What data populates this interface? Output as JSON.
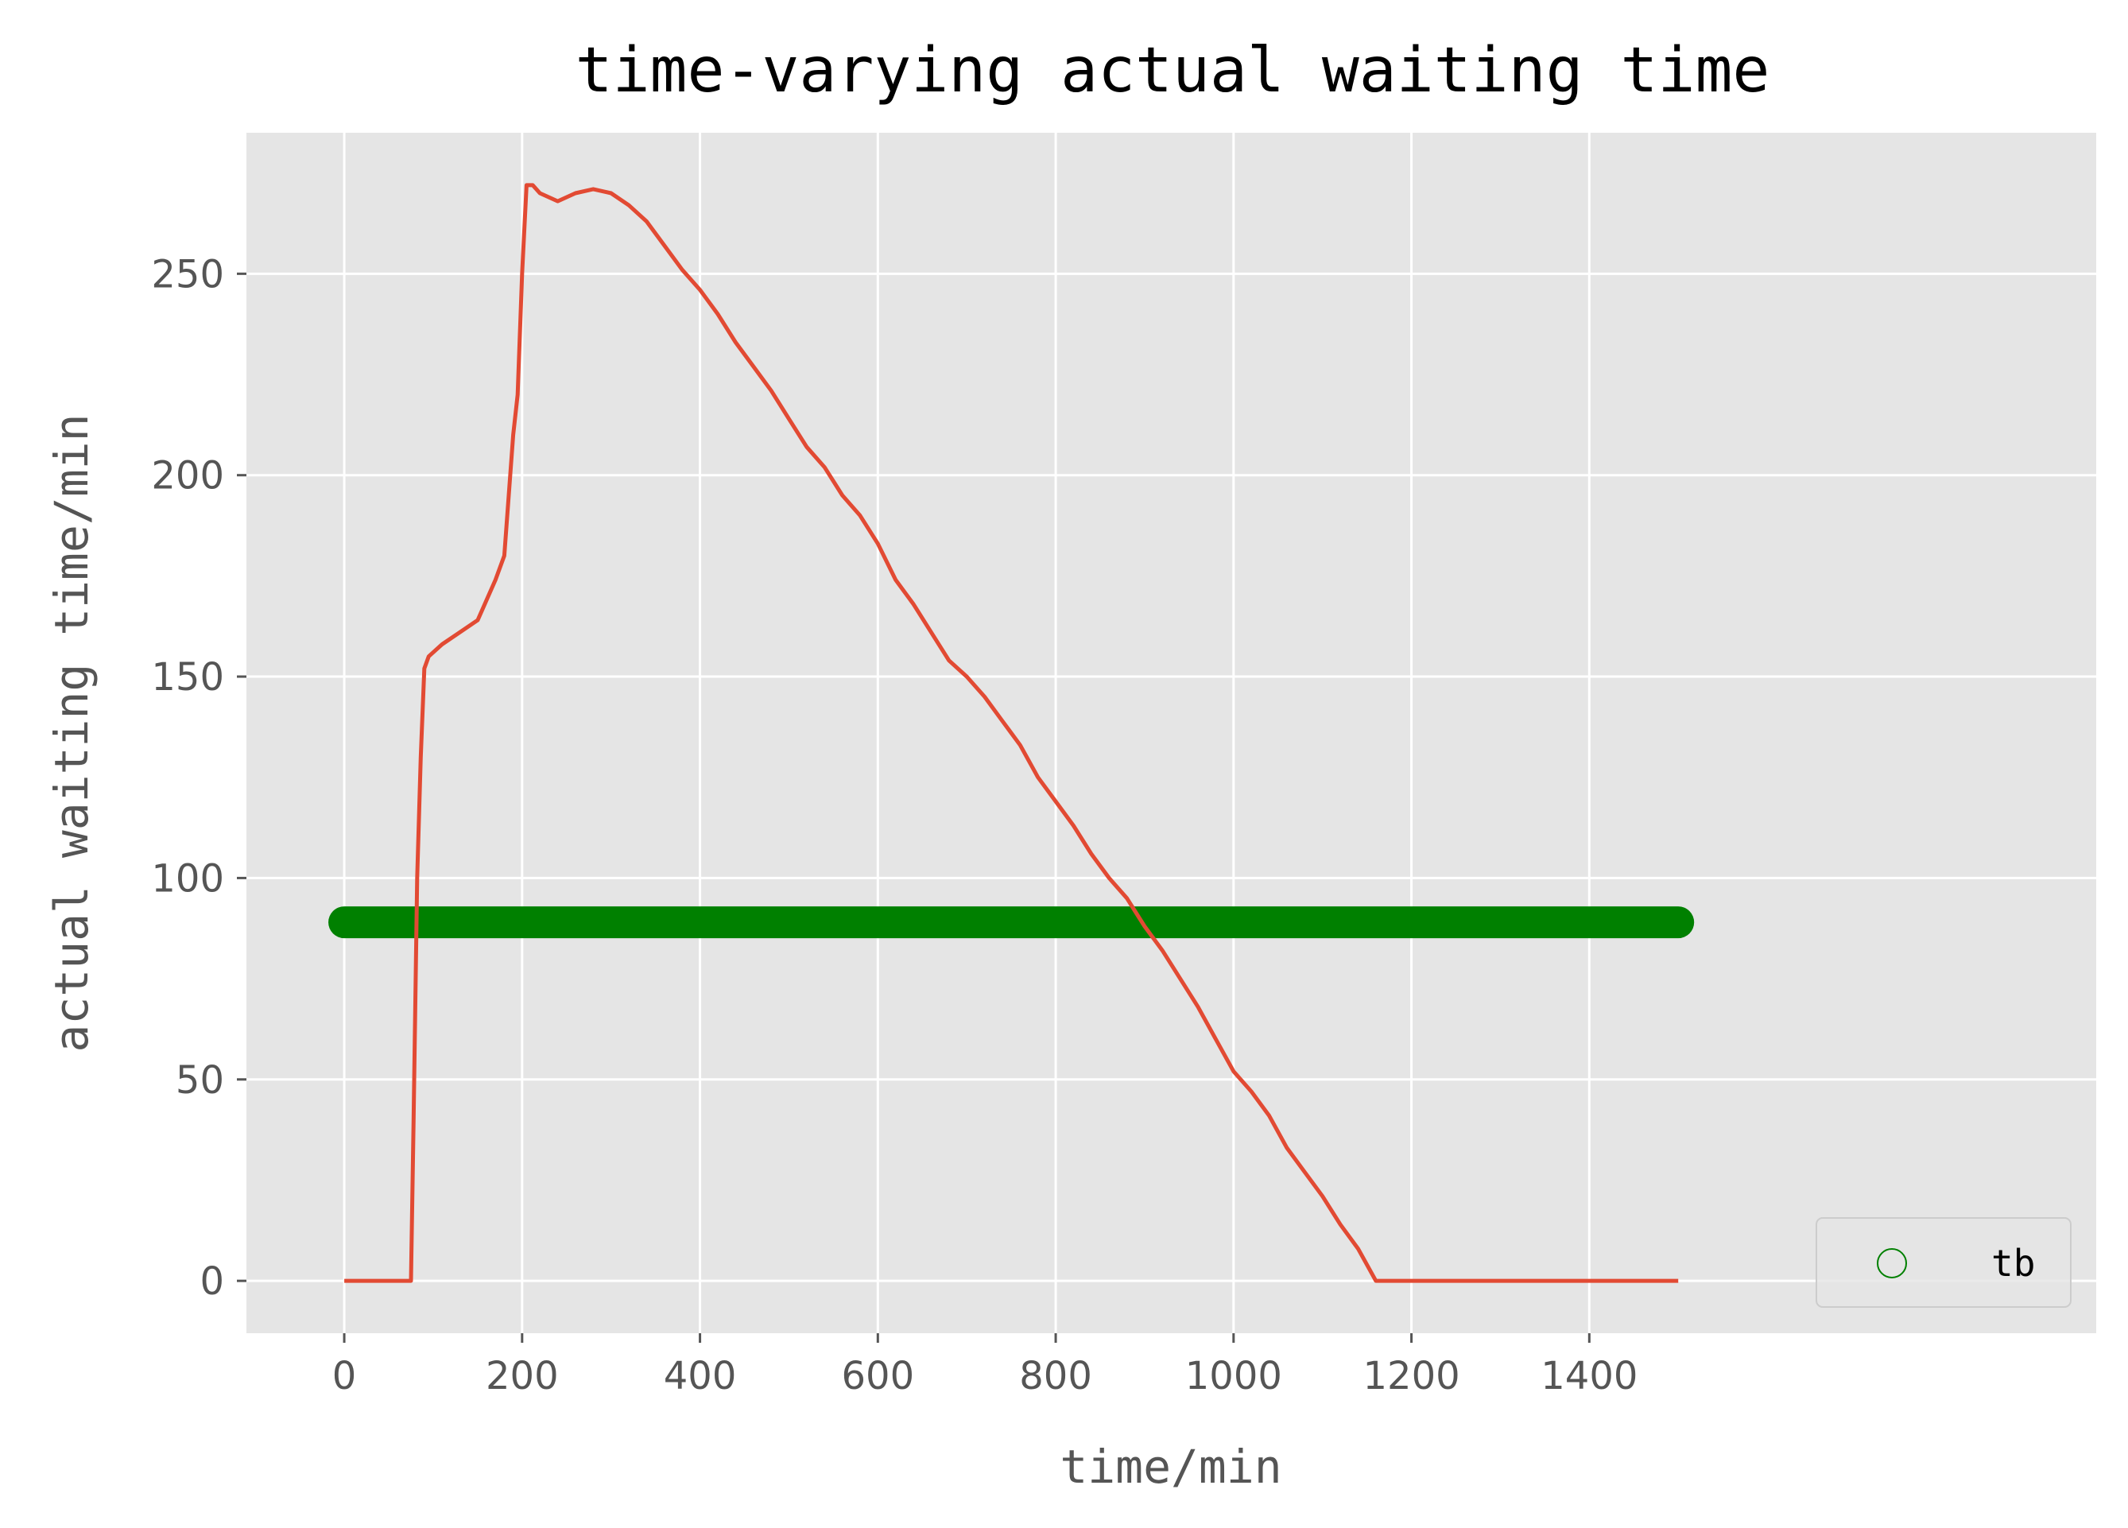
{
  "chart_data": {
    "type": "line",
    "title": "time-varying actual waiting time",
    "xlabel": "time/min",
    "ylabel": "actual waiting time/min",
    "xlim": [
      -110,
      1970
    ],
    "ylim": [
      -13,
      285
    ],
    "xticks": [
      0,
      200,
      400,
      600,
      800,
      1000,
      1200,
      1400
    ],
    "yticks": [
      0,
      50,
      100,
      150,
      200,
      250
    ],
    "grid": true,
    "background": "#e5e5e5",
    "legend": {
      "position": "bottom-right",
      "entries": [
        {
          "label": "tb",
          "marker": "open-circle",
          "color": "#008000"
        }
      ]
    },
    "series": [
      {
        "type": "line",
        "color": "#e24a33",
        "x": [
          0,
          20,
          40,
          60,
          75,
          78,
          82,
          86,
          90,
          95,
          110,
          130,
          150,
          160,
          170,
          180,
          185,
          190,
          195,
          200,
          205,
          210,
          212,
          220,
          240,
          260,
          280,
          300,
          320,
          340,
          360,
          380,
          400,
          420,
          440,
          460,
          480,
          500,
          520,
          540,
          560,
          580,
          600,
          620,
          640,
          660,
          680,
          700,
          720,
          740,
          760,
          780,
          800,
          820,
          840,
          860,
          880,
          900,
          920,
          940,
          960,
          980,
          1000,
          1020,
          1040,
          1060,
          1080,
          1100,
          1120,
          1140,
          1160,
          1180,
          1200,
          1220,
          1240,
          1255,
          1268,
          1280,
          1300,
          1320,
          1340,
          1360,
          1380,
          1400,
          1420,
          1440,
          1460,
          1500
        ],
        "y": [
          0,
          0,
          0,
          0,
          0,
          40,
          100,
          130,
          152,
          155,
          158,
          161,
          164,
          169,
          174,
          180,
          195,
          210,
          220,
          250,
          272,
          272,
          272,
          270,
          268,
          270,
          271,
          270,
          267,
          263,
          257,
          251,
          246,
          240,
          233,
          227,
          221,
          214,
          207,
          202,
          195,
          190,
          183,
          174,
          168,
          161,
          154,
          150,
          145,
          139,
          133,
          125,
          119,
          113,
          106,
          100,
          95,
          88,
          82,
          75,
          68,
          60,
          52,
          47,
          41,
          33,
          27,
          21,
          14,
          8,
          0,
          0,
          0,
          0,
          0,
          0,
          0,
          0,
          0,
          0,
          0,
          0,
          0,
          0,
          0,
          0,
          0,
          0
        ]
      },
      {
        "type": "scatter",
        "name": "tb",
        "color": "#008000",
        "constant_y": 89,
        "x_start": 0,
        "x_end": 1500
      }
    ]
  }
}
